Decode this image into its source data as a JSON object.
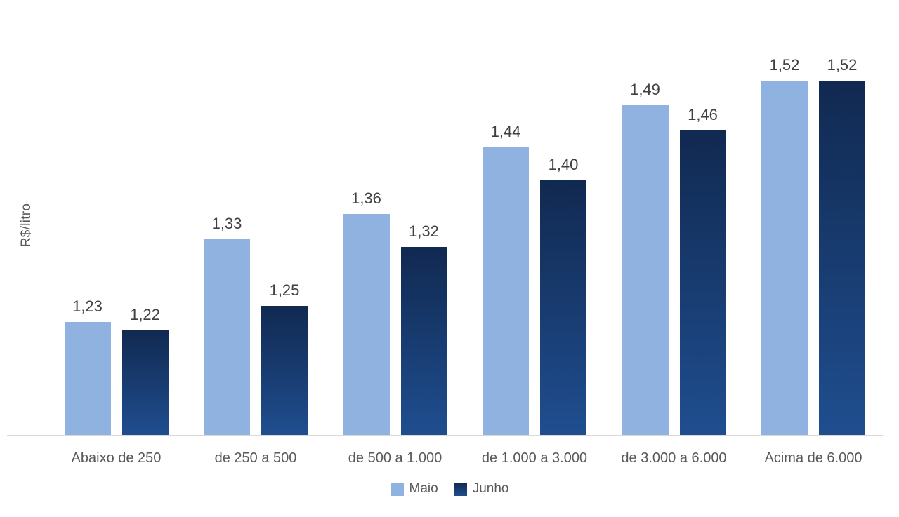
{
  "page": {
    "background": "#FFFFFF"
  },
  "chart_data": {
    "type": "bar",
    "title": "",
    "xlabel": "",
    "ylabel": "R$/litro",
    "categories": [
      "Abaixo de 250",
      "de 250 a 500",
      "de 500 a 1.000",
      "de 1.000 a 3.000",
      "de 3.000 a 6.000",
      "Acima de 6.000"
    ],
    "series": [
      {
        "name": "Maio",
        "values": [
          1.23,
          1.33,
          1.36,
          1.44,
          1.49,
          1.52
        ]
      },
      {
        "name": "Junho",
        "values": [
          1.22,
          1.25,
          1.32,
          1.4,
          1.46,
          1.52
        ]
      }
    ],
    "data_labels": {
      "visible": true,
      "decimals": 2,
      "decimal_separator": ","
    },
    "ylim": [
      1.095,
      1.56
    ],
    "y_axis_ticks_visible": false,
    "grid": false,
    "legend_position": "bottom",
    "colors": {
      "maio_fill": "#8FB2E1",
      "junho_gradient_top": "#112951",
      "junho_gradient_bottom": "#1F4E8F",
      "axis_line": "#D9D9D9",
      "data_label_text": "#404040",
      "axis_label_text": "#595959"
    }
  }
}
